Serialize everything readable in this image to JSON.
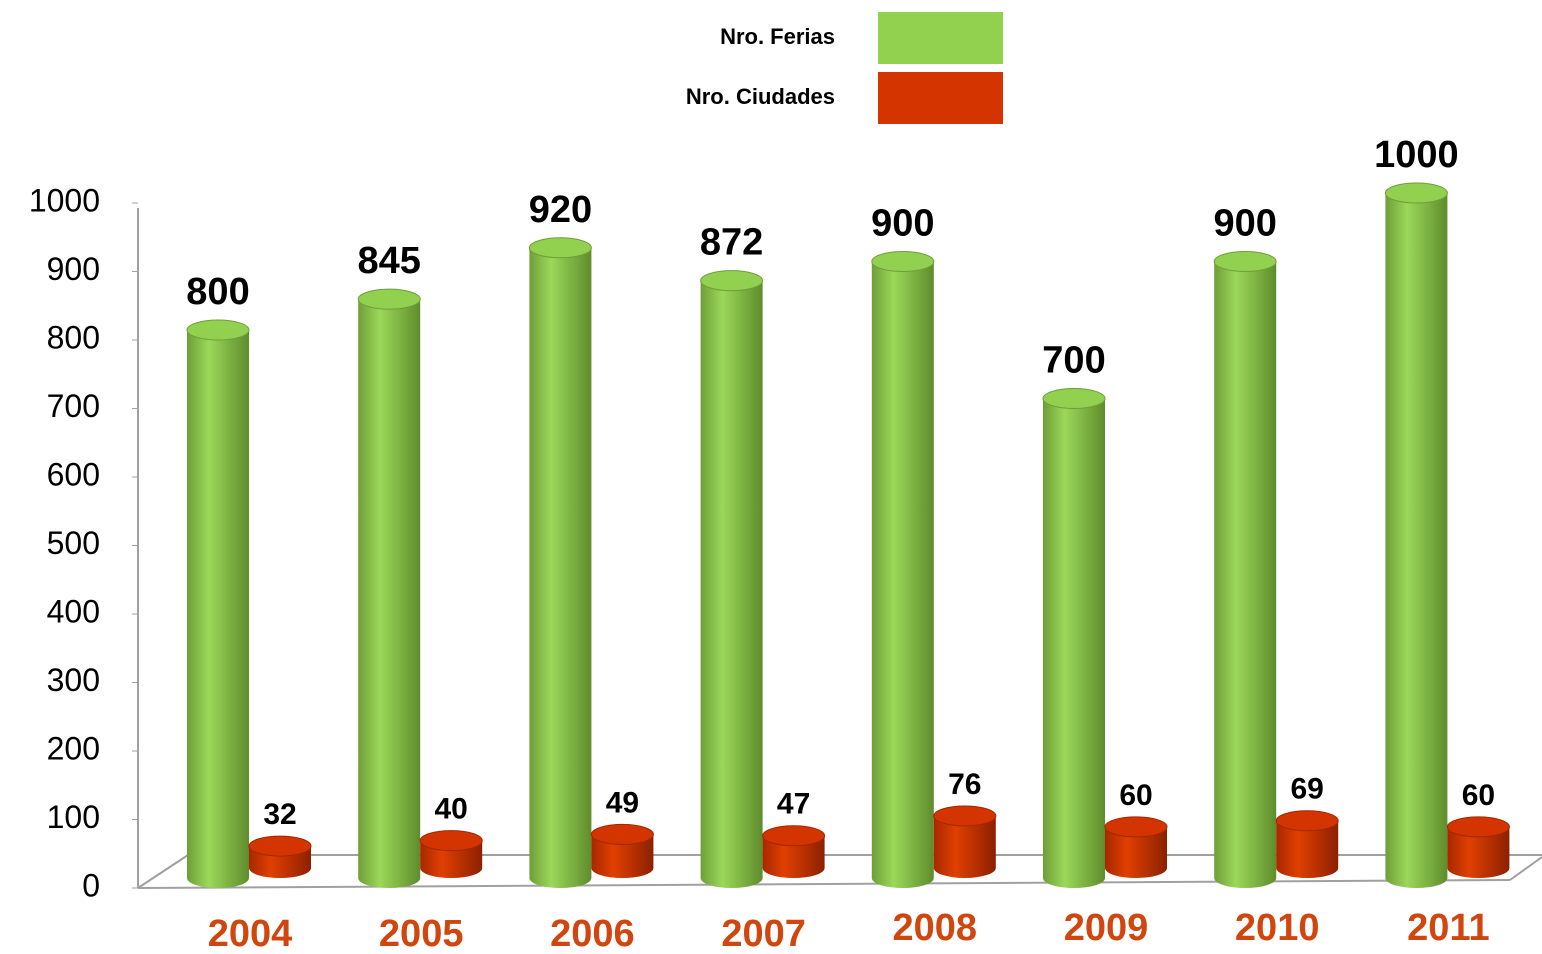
{
  "chart_data": {
    "type": "bar",
    "categories": [
      "2004",
      "2005",
      "2006",
      "2007",
      "2008",
      "2009",
      "2010",
      "2011"
    ],
    "series": [
      {
        "name": "Nro. Ferias",
        "color": "#92d050",
        "values": [
          800,
          845,
          920,
          872,
          900,
          700,
          900,
          1000
        ]
      },
      {
        "name": "Nro. Ciudades",
        "color": "#d43500",
        "values": [
          32,
          40,
          49,
          47,
          76,
          60,
          69,
          60
        ]
      }
    ],
    "ylim": [
      0,
      1000
    ],
    "yticks": [
      0,
      100,
      200,
      300,
      400,
      500,
      600,
      700,
      800,
      900,
      1000
    ],
    "legend": "top"
  }
}
